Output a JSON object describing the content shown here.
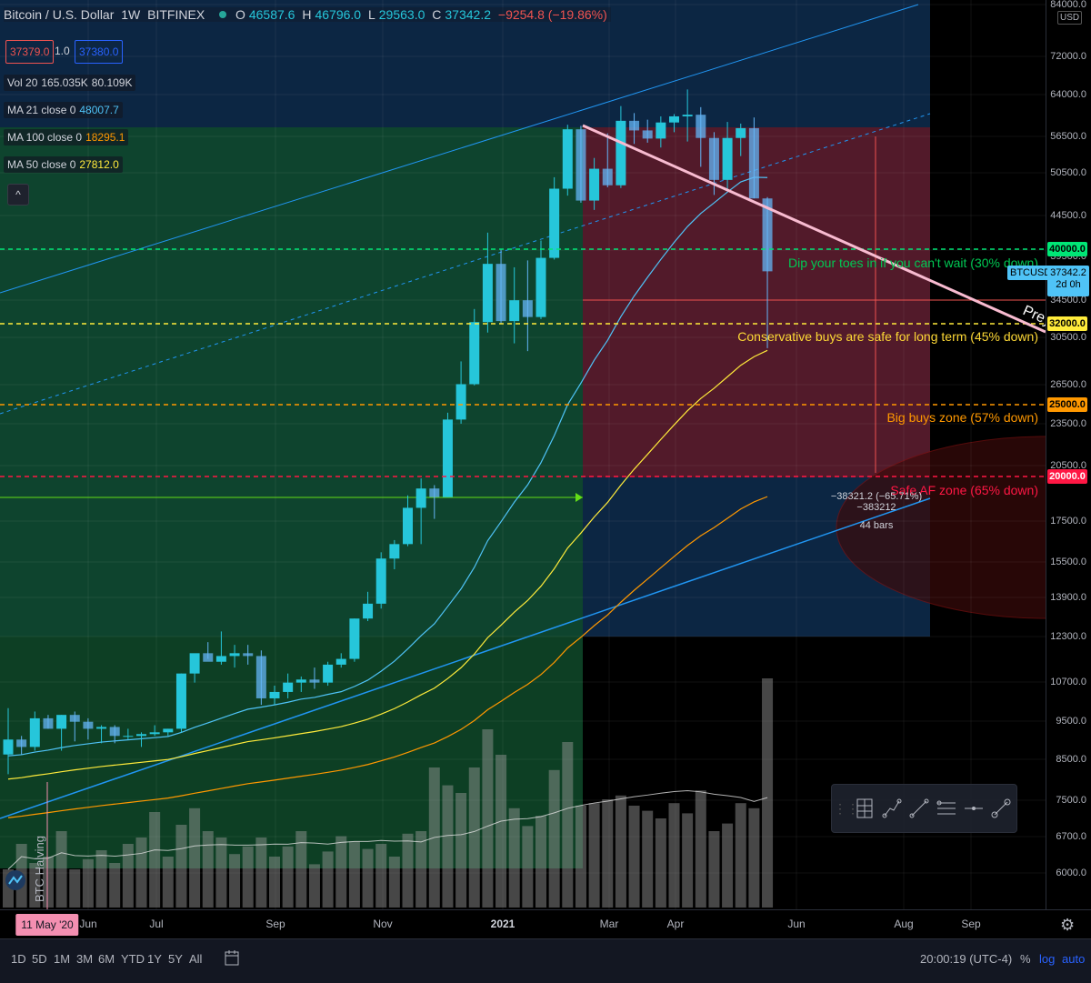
{
  "header": {
    "symbol": "Bitcoin / U.S. Dollar",
    "interval": "1W",
    "exchange": "BITFINEX",
    "open_label": "O",
    "open": "46587.6",
    "high_label": "H",
    "high": "46796.0",
    "low_label": "L",
    "low": "29563.0",
    "close_label": "C",
    "close": "37342.2",
    "change": "−9254.8 (−19.86%)"
  },
  "bid": "37379.0",
  "spread": "1.0",
  "ask": "37380.0",
  "indicators": {
    "vol": {
      "label": "Vol 20",
      "v1": "165.035K",
      "v2": "80.109K"
    },
    "ma21": {
      "label": "MA 21 close 0",
      "value": "48007.7",
      "color": "#4fc3f7"
    },
    "ma100": {
      "label": "MA 100 close 0",
      "value": "18295.1",
      "color": "#ff9800"
    },
    "ma50": {
      "label": "MA 50 close 0",
      "value": "27812.0",
      "color": "#ffeb3b"
    }
  },
  "collapse_icon": "^",
  "currency": "USD",
  "y_ticks": [
    "84000.0",
    "72000.0",
    "64000.0",
    "56500.0",
    "50500.0",
    "44500.0",
    "39500.0",
    "34500.0",
    "30500.0",
    "26500.0",
    "23500.0",
    "20500.0",
    "17500.0",
    "15500.0",
    "13900.0",
    "12300.0",
    "10700.0",
    "9500.0",
    "8500.0",
    "7500.0",
    "6700.0",
    "6000.0"
  ],
  "price_labels": {
    "l40000": {
      "text": "40000.0",
      "color": "#00e676"
    },
    "l32000": {
      "text": "32000.0",
      "color": "#ffeb3b"
    },
    "l25000": {
      "text": "25000.0",
      "color": "#ff9800"
    },
    "l20000": {
      "text": "20000.0",
      "color": "#ff1744"
    },
    "ticker": "BTCUSD",
    "current": "37342.2",
    "countdown": "2d 0h"
  },
  "zones": {
    "z1": {
      "text": "Dip your toes in if you can't wait (30% down)",
      "color": "#00c853"
    },
    "z2": {
      "text": "Conservative buys are safe for long term (45% down)",
      "color": "#fdd835"
    },
    "z3": {
      "text": "Big buys zone (57% down)",
      "color": "#ff9800"
    },
    "z4": {
      "text": "Safe AF zone (65% down)",
      "color": "#ff1744"
    }
  },
  "trendline_label": "Prey",
  "halving_label": "BTC Halving",
  "measure": {
    "line1": "−38321.2 (−65.71%) −383212",
    "line2": "44 bars"
  },
  "x_ticks": [
    {
      "label": "Jun"
    },
    {
      "label": "Jul"
    },
    {
      "label": "Sep"
    },
    {
      "label": "Nov"
    },
    {
      "label": "2021",
      "bold": true
    },
    {
      "label": "Mar"
    },
    {
      "label": "Apr"
    },
    {
      "label": "Jun"
    },
    {
      "label": "Aug"
    },
    {
      "label": "Sep"
    }
  ],
  "date_badge": "11 May '20",
  "bottom": {
    "ranges": [
      "1D",
      "5D",
      "1M",
      "3M",
      "6M",
      "YTD",
      "1Y",
      "5Y",
      "All"
    ],
    "time": "20:00:19 (UTC-4)",
    "percent": "%",
    "log": "log",
    "auto": "auto"
  },
  "chart_data": {
    "type": "candlestick",
    "title": "Bitcoin / U.S. Dollar",
    "interval": "1W",
    "y_scale": "log",
    "ylim": [
      5500,
      84000
    ],
    "candles": [
      [
        8600,
        9900,
        8100,
        9000
      ],
      [
        9000,
        9100,
        8600,
        8800
      ],
      [
        8800,
        9800,
        8700,
        9600
      ],
      [
        9600,
        9700,
        9300,
        9300
      ],
      [
        9300,
        9700,
        8700,
        9700
      ],
      [
        9700,
        9800,
        8950,
        9500
      ],
      [
        9500,
        9600,
        9000,
        9300
      ],
      [
        9300,
        9400,
        8900,
        9350
      ],
      [
        9350,
        9400,
        8900,
        9100
      ],
      [
        9100,
        9300,
        9000,
        9100
      ],
      [
        9100,
        9200,
        8800,
        9150
      ],
      [
        9150,
        9400,
        9100,
        9200
      ],
      [
        9200,
        9300,
        9100,
        9300
      ],
      [
        9300,
        11000,
        9200,
        11000
      ],
      [
        11000,
        11500,
        10700,
        11700
      ],
      [
        11700,
        12100,
        11500,
        11400
      ],
      [
        11400,
        12500,
        11300,
        11600
      ],
      [
        11600,
        12000,
        11200,
        11700
      ],
      [
        11700,
        12000,
        11300,
        11600
      ],
      [
        11600,
        11800,
        10000,
        10200
      ],
      [
        10200,
        10600,
        10000,
        10400
      ],
      [
        10400,
        11000,
        10200,
        10700
      ],
      [
        10700,
        10900,
        10400,
        10800
      ],
      [
        10800,
        11200,
        10500,
        10700
      ],
      [
        10700,
        11400,
        10600,
        11300
      ],
      [
        11300,
        11700,
        11200,
        11500
      ],
      [
        11500,
        13000,
        11400,
        13000
      ],
      [
        13000,
        14100,
        12900,
        13600
      ],
      [
        13600,
        15900,
        13400,
        15600
      ],
      [
        15600,
        16500,
        15100,
        16300
      ],
      [
        16300,
        18900,
        16200,
        18200
      ],
      [
        18200,
        19900,
        16300,
        19300
      ],
      [
        19300,
        19500,
        17600,
        18800
      ],
      [
        18800,
        24300,
        18800,
        23800
      ],
      [
        23800,
        28400,
        23500,
        26500
      ],
      [
        26500,
        33300,
        26400,
        32000
      ],
      [
        32000,
        42000,
        31000,
        38200
      ],
      [
        38200,
        40000,
        31800,
        32100
      ],
      [
        32100,
        37800,
        30000,
        34200
      ],
      [
        34200,
        38600,
        29300,
        32500
      ],
      [
        32500,
        41000,
        32300,
        38900
      ],
      [
        38900,
        49700,
        38700,
        48000
      ],
      [
        48000,
        58300,
        47000,
        57500
      ],
      [
        57500,
        58100,
        46000,
        46300
      ],
      [
        46300,
        52700,
        45000,
        51000
      ],
      [
        51000,
        56800,
        48200,
        48500
      ],
      [
        48500,
        61700,
        48100,
        59000
      ],
      [
        59000,
        60400,
        55000,
        57300
      ],
      [
        57300,
        59200,
        55200,
        55900
      ],
      [
        55900,
        59800,
        54400,
        58700
      ],
      [
        58700,
        60200,
        57000,
        59800
      ],
      [
        59800,
        64900,
        55400,
        60100
      ],
      [
        60100,
        61500,
        51300,
        56000
      ],
      [
        56000,
        57000,
        47100,
        49300
      ],
      [
        49300,
        58800,
        48000,
        56000
      ],
      [
        56000,
        58500,
        53000,
        57700
      ],
      [
        57700,
        59600,
        46600,
        46600
      ],
      [
        46600,
        46796,
        29563,
        37342
      ]
    ],
    "volume": [
      30,
      50,
      35,
      40,
      60,
      30,
      38,
      45,
      35,
      50,
      55,
      75,
      40,
      65,
      78,
      60,
      55,
      42,
      48,
      55,
      40,
      48,
      60,
      34,
      44,
      56,
      52,
      46,
      50,
      40,
      58,
      60,
      110,
      96,
      90,
      110,
      140,
      120,
      78,
      64,
      72,
      108,
      130,
      80,
      82,
      85,
      88,
      80,
      76,
      70,
      82,
      74,
      92,
      60,
      66,
      82,
      78,
      180
    ],
    "levels": [
      {
        "price": 40000,
        "label": "Dip your toes in if you can't wait (30% down)"
      },
      {
        "price": 32000,
        "label": "Conservative buys are safe for long term (45% down)"
      },
      {
        "price": 25000,
        "label": "Big buys zone (57% down)"
      },
      {
        "price": 20000,
        "label": "Safe AF zone (65% down)"
      }
    ]
  }
}
